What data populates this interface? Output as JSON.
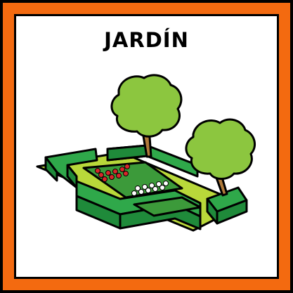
{
  "card": {
    "title": "JARDÍN",
    "border_color": "#f36a10",
    "illustration": "garden-illustration",
    "colors": {
      "lawn": "#b9d83a",
      "hedge": "#1f8a3a",
      "hedge_light": "#2fa84a",
      "bed_grass": "#3c9a3a",
      "foliage": "#8cc63f",
      "trunk": "#b07a3a",
      "flower_red": "#d7262a",
      "flower_white": "#ffffff"
    }
  }
}
